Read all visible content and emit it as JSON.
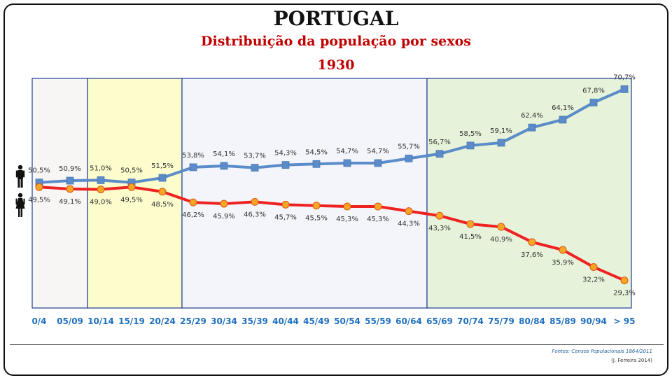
{
  "header": {
    "title": "PORTUGAL",
    "subtitle": "Distribuição  da população por sexos",
    "year": "1930"
  },
  "footer": {
    "source": "Fontes: Censos Populacionais 1864/2011",
    "author": "(J. Ferreira 2014)"
  },
  "icons": {
    "male": "man-icon",
    "female": "woman-icon"
  },
  "colors": {
    "male_line": "#5b8cc9",
    "male_marker": "#5b8cc9",
    "female_line": "#ee2222",
    "female_marker": "#f5a623",
    "band_children": "#f8f6f5",
    "band_youth": "#fdfccc",
    "band_adults": "#f3f5fb",
    "band_elderly": "#e6f2d9",
    "band_border": "#1f3f8f",
    "tick_label": "#1f6fbf"
  },
  "chart_data": {
    "type": "line",
    "categories": [
      "0/4",
      "05/09",
      "10/14",
      "15/19",
      "20/24",
      "25/29",
      "30/34",
      "35/39",
      "40/44",
      "45/49",
      "50/54",
      "55/59",
      "60/64",
      "65/69",
      "70/74",
      "75/79",
      "80/84",
      "85/89",
      "90/94",
      "> 95"
    ],
    "series": [
      {
        "icon": "man-icon",
        "values": [
          50.5,
          50.9,
          51.0,
          50.5,
          51.5,
          53.8,
          54.1,
          53.7,
          54.3,
          54.5,
          54.7,
          54.7,
          55.7,
          56.7,
          58.5,
          59.1,
          62.4,
          64.1,
          67.8,
          70.7
        ],
        "labels": [
          "50,5%",
          "50,9%",
          "51,0%",
          "50,5%",
          "51,5%",
          "53,8%",
          "54,1%",
          "53,7%",
          "54,3%",
          "54,5%",
          "54,7%",
          "54,7%",
          "55,7%",
          "56,7%",
          "58,5%",
          "59,1%",
          "62,4%",
          "64,1%",
          "67,8%",
          "70,7%"
        ]
      },
      {
        "icon": "woman-icon",
        "values": [
          49.5,
          49.1,
          49.0,
          49.5,
          48.5,
          46.2,
          45.9,
          46.3,
          45.7,
          45.5,
          45.3,
          45.3,
          44.3,
          43.3,
          41.5,
          40.9,
          37.6,
          35.9,
          32.2,
          29.3
        ],
        "labels": [
          "49,5%",
          "49,1%",
          "49,0%",
          "49,5%",
          "48,5%",
          "46,2%",
          "45,9%",
          "46,3%",
          "45,7%",
          "45,5%",
          "45,3%",
          "45,3%",
          "44,3%",
          "43,3%",
          "41,5%",
          "40,9%",
          "37,6%",
          "35,9%",
          "32,2%",
          "29,3%"
        ]
      }
    ],
    "bands": [
      {
        "from": "0/4",
        "to": "05/09",
        "fill": "#f8f6f5"
      },
      {
        "from": "10/14",
        "to": "20/24",
        "fill": "#fdfccc"
      },
      {
        "from": "25/29",
        "to": "60/64",
        "fill": "#f3f5fb"
      },
      {
        "from": "65/69",
        "to": "> 95",
        "fill": "#e6f2d9"
      }
    ],
    "grid": false,
    "legend": "none (icons at left)"
  }
}
